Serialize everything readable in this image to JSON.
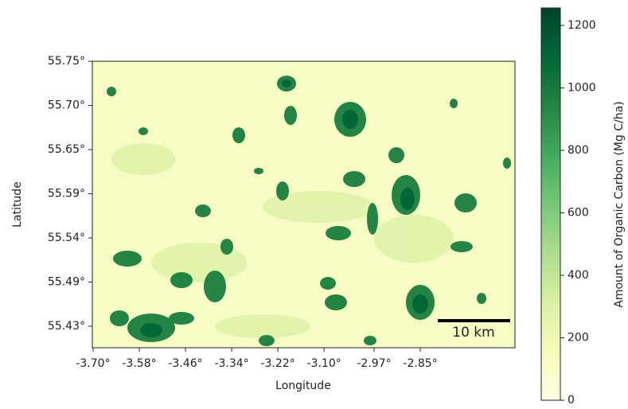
{
  "chart_data": {
    "type": "heatmap",
    "xlabel": "Longitude",
    "ylabel": "Latitude",
    "xlim": [
      -3.702,
      -2.604
    ],
    "ylim": [
      55.4074,
      55.7525
    ],
    "xticks": [
      {
        "value": -3.7,
        "label": "-3.70°"
      },
      {
        "value": -3.58,
        "label": "-3.58°"
      },
      {
        "value": -3.46,
        "label": "-3.46°"
      },
      {
        "value": -3.34,
        "label": "-3.34°"
      },
      {
        "value": -3.22,
        "label": "-3.22°"
      },
      {
        "value": -3.1,
        "label": "-3.10°"
      },
      {
        "value": -2.97,
        "label": "-2.97°"
      },
      {
        "value": -2.85,
        "label": "-2.85°"
      }
    ],
    "yticks": [
      {
        "value": 55.7525,
        "label": "55.75°"
      },
      {
        "value": 55.6993,
        "label": "55.70°"
      },
      {
        "value": 55.6461,
        "label": "55.65°"
      },
      {
        "value": 55.5929,
        "label": "55.59°"
      },
      {
        "value": 55.5397,
        "label": "55.54°"
      },
      {
        "value": 55.4865,
        "label": "55.49°"
      },
      {
        "value": 55.4333,
        "label": "55.43°"
      }
    ],
    "colorbar": {
      "label": "Amount of Organic Carbon (Mg C/ha)",
      "lim": [
        0,
        1256
      ],
      "ticks": [
        0,
        200,
        400,
        600,
        800,
        1000,
        1200
      ],
      "colors": [
        "#ffffe5",
        "#f7fcb9",
        "#d9f0a3",
        "#addd8e",
        "#78c679",
        "#41ab5d",
        "#238443",
        "#006837",
        "#004529"
      ]
    },
    "annotations": [
      "10 km"
    ]
  }
}
